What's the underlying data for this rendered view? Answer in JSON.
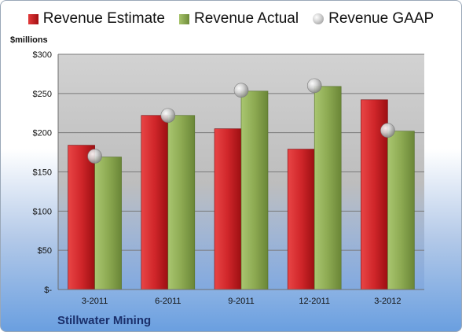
{
  "chart_data": {
    "type": "bar",
    "title": "Stillwater Mining",
    "ylabel": "$millions",
    "ylim": [
      0,
      300
    ],
    "yticks": [
      {
        "value": 0,
        "label": "$-"
      },
      {
        "value": 50,
        "label": "$50"
      },
      {
        "value": 100,
        "label": "$100"
      },
      {
        "value": 150,
        "label": "$150"
      },
      {
        "value": 200,
        "label": "$200"
      },
      {
        "value": 250,
        "label": "$250"
      },
      {
        "value": 300,
        "label": "$300"
      }
    ],
    "grid": true,
    "legend_position": "top",
    "categories": [
      "3-2011",
      "6-2011",
      "9-2011",
      "12-2011",
      "3-2012"
    ],
    "series": [
      {
        "name": "Revenue Estimate",
        "kind": "bar",
        "color": "#c8191d",
        "values": [
          184,
          222,
          205,
          179,
          242
        ]
      },
      {
        "name": "Revenue Actual",
        "kind": "bar",
        "color": "#8daa52",
        "values": [
          169,
          222,
          253,
          259,
          202
        ]
      },
      {
        "name": "Revenue GAAP",
        "kind": "marker",
        "color": "#c0c0c0",
        "values": [
          170,
          222,
          254,
          260,
          203
        ]
      }
    ]
  }
}
